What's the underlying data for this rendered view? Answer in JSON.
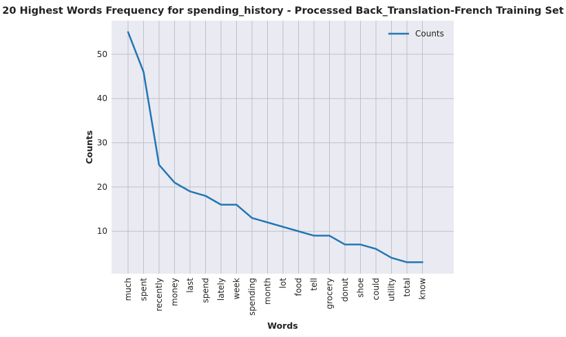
{
  "chart_data": {
    "type": "line",
    "title": "20 Highest Words Frequency for spending_history - Processed Back_Translation-French Training Set",
    "xlabel": "Words",
    "ylabel": "Counts",
    "categories": [
      "much",
      "spent",
      "recently",
      "money",
      "last",
      "spend",
      "lately",
      "week",
      "spending",
      "month",
      "lot",
      "food",
      "tell",
      "grocery",
      "donut",
      "shoe",
      "could",
      "utility",
      "total",
      "know"
    ],
    "series": [
      {
        "name": "Counts",
        "values": [
          55,
          46,
          25,
          21,
          19,
          18,
          16,
          16,
          13,
          12,
          11,
          10,
          9,
          9,
          7,
          7,
          6,
          4,
          3,
          3
        ],
        "color": "#1f77b4"
      }
    ],
    "yticks": [
      10,
      20,
      30,
      40,
      50
    ],
    "ylim": [
      0.4,
      57.6
    ],
    "grid": true,
    "legend_position": "top-right",
    "background_color": "#eaeaf2",
    "grid_color": "#c0c0c8"
  }
}
